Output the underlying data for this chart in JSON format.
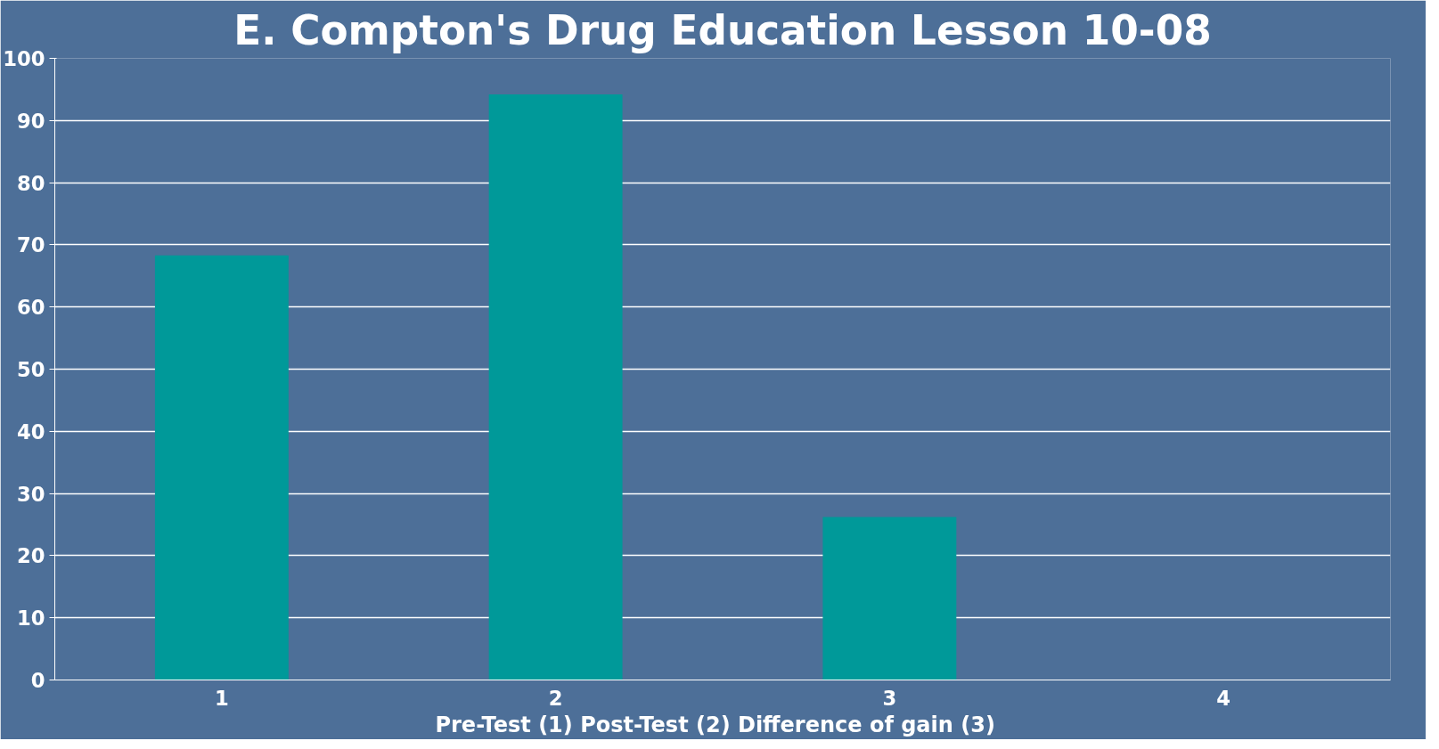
{
  "chart_data": {
    "type": "bar",
    "title": "E. Compton's Drug Education Lesson 10-08",
    "xlabel": "Pre-Test (1)  Post-Test (2)  Difference of gain (3)",
    "categories": [
      "1",
      "2",
      "3",
      "4"
    ],
    "values": [
      68.3,
      94.2,
      26.2,
      null
    ],
    "color": "#009999",
    "ylim": [
      0,
      100
    ],
    "yticks": [
      0,
      10,
      20,
      30,
      40,
      50,
      60,
      70,
      80,
      90,
      100
    ],
    "grid": "y"
  }
}
